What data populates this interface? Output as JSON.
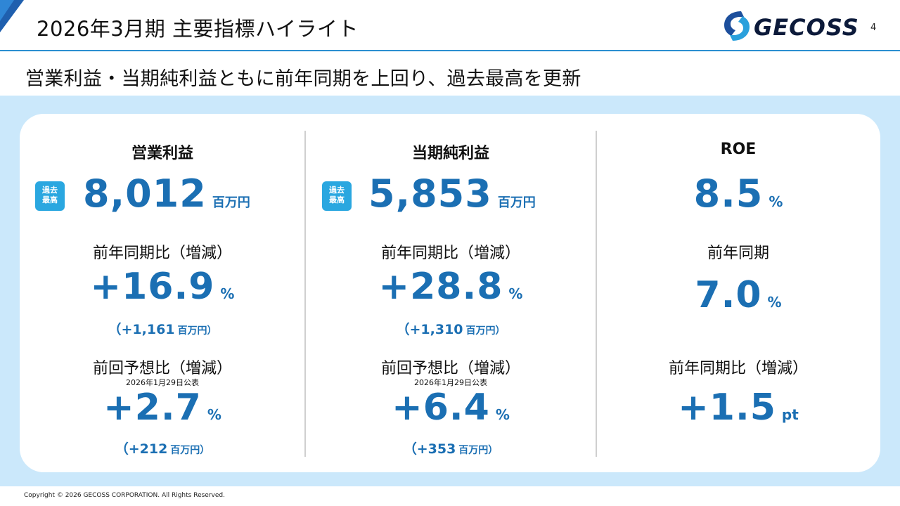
{
  "header": {
    "title": "2026年3月期 主要指標ハイライト",
    "logo_text": "GECOSS",
    "page_number": "4"
  },
  "subtitle": "営業利益・当期純利益ともに前年同期を上回り、過去最高を更新",
  "colors": {
    "accent_blue": "#1b6fb3",
    "badge_blue": "#2aa7e0",
    "panel_bg": "#cbe8fb",
    "header_rule": "#2a8fd0"
  },
  "metrics": [
    {
      "title": "営業利益",
      "badge": [
        "過去",
        "最高"
      ],
      "value": "8,012",
      "unit": "百万円",
      "yoy_label": "前年同期比（増減）",
      "yoy_value": "+16.9",
      "yoy_unit": "%",
      "yoy_delta_prefix": "（+1,161",
      "yoy_delta_unit": "百万円）",
      "forecast_label": "前回予想比（増減）",
      "forecast_note": "2026年1月29日公表",
      "forecast_value": "+2.7",
      "forecast_unit": "%",
      "forecast_delta_prefix": "（+212",
      "forecast_delta_unit": "百万円）"
    },
    {
      "title": "当期純利益",
      "badge": [
        "過去",
        "最高"
      ],
      "value": "5,853",
      "unit": "百万円",
      "yoy_label": "前年同期比（増減）",
      "yoy_value": "+28.8",
      "yoy_unit": "%",
      "yoy_delta_prefix": "（+1,310",
      "yoy_delta_unit": "百万円）",
      "forecast_label": "前回予想比（増減）",
      "forecast_note": "2026年1月29日公表",
      "forecast_value": "+6.4",
      "forecast_unit": "%",
      "forecast_delta_prefix": "（+353",
      "forecast_delta_unit": "百万円）"
    },
    {
      "title": "ROE",
      "value": "8.5",
      "unit": "%",
      "prev_label": "前年同期",
      "prev_value": "7.0",
      "prev_unit": "%",
      "yoy_label": "前年同期比（増減）",
      "yoy_value": "+1.5",
      "yoy_unit": "pt"
    }
  ],
  "footer": {
    "copyright": "Copyright © 2026 GECOSS CORPORATION. All Rights Reserved."
  }
}
